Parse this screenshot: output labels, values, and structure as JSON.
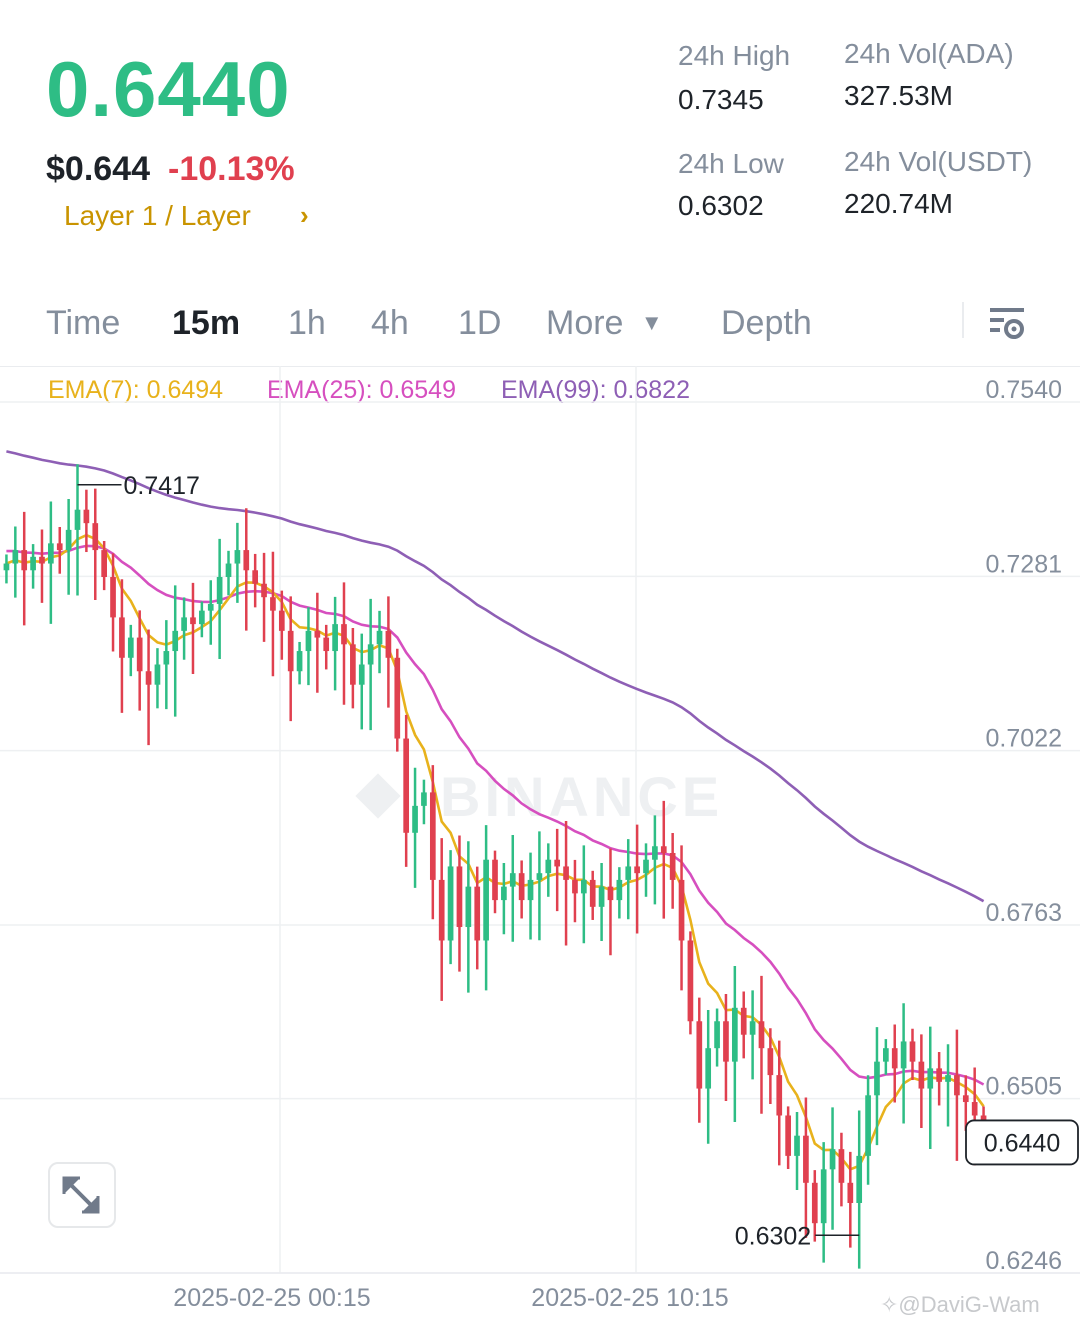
{
  "ticker": {
    "last_price": "0.6440",
    "usd_price": "$0.644",
    "change_pct": "-10.13%",
    "category": "Layer 1 / Layer",
    "category_arrow": "›"
  },
  "stats": {
    "high_label": "24h High",
    "high_value": "0.7345",
    "low_label": "24h Low",
    "low_value": "0.6302",
    "vol_ada_label": "24h Vol(ADA)",
    "vol_ada_value": "327.53M",
    "vol_usdt_label": "24h Vol(USDT)",
    "vol_usdt_value": "220.74M"
  },
  "tabs": [
    {
      "label": "Time",
      "active": false
    },
    {
      "label": "15m",
      "active": true
    },
    {
      "label": "1h",
      "active": false
    },
    {
      "label": "4h",
      "active": false
    },
    {
      "label": "1D",
      "active": false
    },
    {
      "label": "More",
      "active": false
    },
    {
      "label": "Depth",
      "active": false
    }
  ],
  "more_caret": "▼",
  "indicators": {
    "ema7": "EMA(7): 0.6494",
    "ema25": "EMA(25): 0.6549",
    "ema99": "EMA(99): 0.6822"
  },
  "colors": {
    "up": "#2ebd85",
    "down": "#e0404f",
    "ema7": "#e8b21c",
    "ema25": "#d64fbf",
    "ema99": "#8e5fb5",
    "category": "#c99400"
  },
  "icons": {
    "settings": "chart-settings-icon",
    "expand": "expand-icon",
    "logo": "binance-logo-icon"
  },
  "chart_data": {
    "type": "candlestick",
    "interval": "15m",
    "ylim": [
      0.6246,
      0.754
    ],
    "y_ticks": [
      "0.7540",
      "0.7281",
      "0.7022",
      "0.6763",
      "0.6505",
      "0.6246"
    ],
    "x_ticks": [
      "2025-02-25 00:15",
      "2025-02-25 10:15"
    ],
    "current_price": "0.6440",
    "high_marker": "0.7417",
    "low_marker": "0.6302",
    "watermark": "BINANCE",
    "close": [
      0.73,
      0.732,
      0.729,
      0.731,
      0.73,
      0.733,
      0.732,
      0.735,
      0.738,
      0.736,
      0.732,
      0.728,
      0.722,
      0.716,
      0.719,
      0.714,
      0.712,
      0.715,
      0.717,
      0.72,
      0.722,
      0.721,
      0.723,
      0.724,
      0.728,
      0.73,
      0.732,
      0.729,
      0.727,
      0.725,
      0.723,
      0.72,
      0.714,
      0.717,
      0.72,
      0.719,
      0.717,
      0.721,
      0.718,
      0.712,
      0.715,
      0.718,
      0.72,
      0.716,
      0.704,
      0.69,
      0.694,
      0.696,
      0.683,
      0.674,
      0.685,
      0.676,
      0.682,
      0.674,
      0.686,
      0.68,
      0.682,
      0.684,
      0.68,
      0.683,
      0.684,
      0.686,
      0.685,
      0.683,
      0.681,
      0.683,
      0.679,
      0.682,
      0.68,
      0.683,
      0.685,
      0.684,
      0.686,
      0.688,
      0.687,
      0.683,
      0.674,
      0.662,
      0.652,
      0.658,
      0.662,
      0.656,
      0.664,
      0.66,
      0.662,
      0.658,
      0.654,
      0.648,
      0.642,
      0.645,
      0.638,
      0.632,
      0.64,
      0.643,
      0.638,
      0.635,
      0.642,
      0.651,
      0.656,
      0.658,
      0.655,
      0.659,
      0.656,
      0.652,
      0.655,
      0.653,
      0.654,
      0.651,
      0.65,
      0.648,
      0.644
    ]
  }
}
